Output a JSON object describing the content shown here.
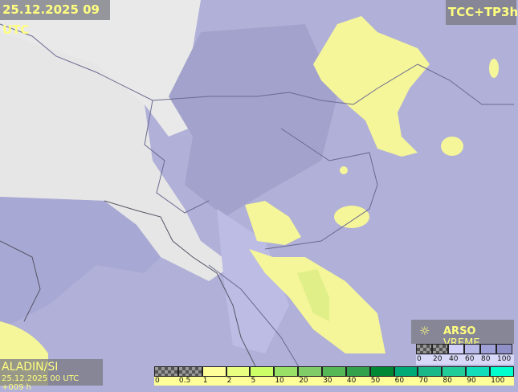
{
  "header": {
    "datetime": "25.12.2025 09 UTC",
    "parameter": "TCC+TP3h"
  },
  "model": {
    "name": "ALADIN/SI",
    "run": "25.12.2025 00 UTC +009 h"
  },
  "brand": {
    "logo_icon": "sun-icon",
    "bold": "ARSO",
    "light": "VREME"
  },
  "cloud_legend": {
    "labels": [
      "0",
      "20",
      "40",
      "60",
      "80",
      "100"
    ],
    "colors": [
      "checker",
      "checker",
      "#d0d0f8",
      "#b8b8e8",
      "#a0a0d8",
      "#9090c8"
    ]
  },
  "precip_legend": {
    "labels": [
      "0",
      "0.5",
      "1",
      "2",
      "5",
      "10",
      "20",
      "30",
      "40",
      "50",
      "60",
      "70",
      "80",
      "90",
      "100"
    ],
    "colors": [
      "checker",
      "checker",
      "#ffff99",
      "#e8ff80",
      "#ccff66",
      "#99e066",
      "#80cc66",
      "#55b855",
      "#33a04c",
      "#008833",
      "#00aa77",
      "#1ab888",
      "#22cc99",
      "#11ddbb",
      "#00ffcc"
    ]
  },
  "colors": {
    "label_text": "#ffff80",
    "precip_light": "#f5f59a",
    "cloud_base": "#b0b0d8",
    "land_clear": "#e8e8e8"
  }
}
